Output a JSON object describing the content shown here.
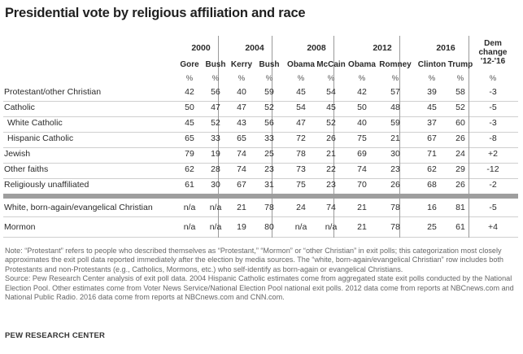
{
  "title": "Presidential vote by religious affiliation and race",
  "chart_data": {
    "type": "table",
    "title": "Presidential vote by religious affiliation and race",
    "years": [
      {
        "year": "2000",
        "candidates": [
          "Gore",
          "Bush"
        ]
      },
      {
        "year": "2004",
        "candidates": [
          "Kerry",
          "Bush"
        ]
      },
      {
        "year": "2008",
        "candidates": [
          "Obama",
          "McCain"
        ]
      },
      {
        "year": "2012",
        "candidates": [
          "Obama",
          "Romney"
        ]
      },
      {
        "year": "2016",
        "candidates": [
          "Clinton",
          "Trump"
        ]
      }
    ],
    "dem_change_header": [
      "Dem",
      "change",
      "'12-'16"
    ],
    "pct_symbol": "%",
    "rows": [
      {
        "label": "Protestant/other Christian",
        "values": [
          "42",
          "56",
          "40",
          "59",
          "45",
          "54",
          "42",
          "57",
          "39",
          "58"
        ],
        "change": "-3"
      },
      {
        "label": "Catholic",
        "values": [
          "50",
          "47",
          "47",
          "52",
          "54",
          "45",
          "50",
          "48",
          "45",
          "52"
        ],
        "change": "-5"
      },
      {
        "label": "White Catholic",
        "values": [
          "45",
          "52",
          "43",
          "56",
          "47",
          "52",
          "40",
          "59",
          "37",
          "60"
        ],
        "change": "-3"
      },
      {
        "label": "Hispanic Catholic",
        "values": [
          "65",
          "33",
          "65",
          "33",
          "72",
          "26",
          "75",
          "21",
          "67",
          "26"
        ],
        "change": "-8"
      },
      {
        "label": "Jewish",
        "values": [
          "79",
          "19",
          "74",
          "25",
          "78",
          "21",
          "69",
          "30",
          "71",
          "24"
        ],
        "change": "+2"
      },
      {
        "label": "Other faiths",
        "values": [
          "62",
          "28",
          "74",
          "23",
          "73",
          "22",
          "74",
          "23",
          "62",
          "29"
        ],
        "change": "-12"
      },
      {
        "label": "Religiously unaffiliated",
        "values": [
          "61",
          "30",
          "67",
          "31",
          "75",
          "23",
          "70",
          "26",
          "68",
          "26"
        ],
        "change": "-2"
      },
      {
        "label": "White, born-again/evangelical Christian",
        "values": [
          "n/a",
          "n/a",
          "21",
          "78",
          "24",
          "74",
          "21",
          "78",
          "16",
          "81"
        ],
        "change": "-5"
      },
      {
        "label": "Mormon",
        "values": [
          "n/a",
          "n/a",
          "19",
          "80",
          "n/a",
          "n/a",
          "21",
          "78",
          "25",
          "61"
        ],
        "change": "+4"
      }
    ]
  },
  "notes": {
    "note": "Note: “Protestant” refers to people who described themselves as “Protestant,” “Mormon” or “other Christian” in exit polls; this categorization most closely approximates the exit poll data reported immediately after the election by media sources. The “white, born-again/evangelical Christian” row includes both Protestants and non-Protestants (e.g., Catholics, Mormons, etc.) who self-identify as born-again or evangelical Christians.",
    "source": "Source: Pew Research Center analysis of exit poll data. 2004 Hispanic Catholic estimates come from aggregated state exit polls conducted by the National Election Pool. Other estimates come from Voter News Service/National Election Pool national exit polls. 2012 data come from reports at NBCnews.com and National Public Radio. 2016 data come from reports at NBCnews.com and CNN.com.",
    "brand": "PEW RESEARCH CENTER"
  }
}
